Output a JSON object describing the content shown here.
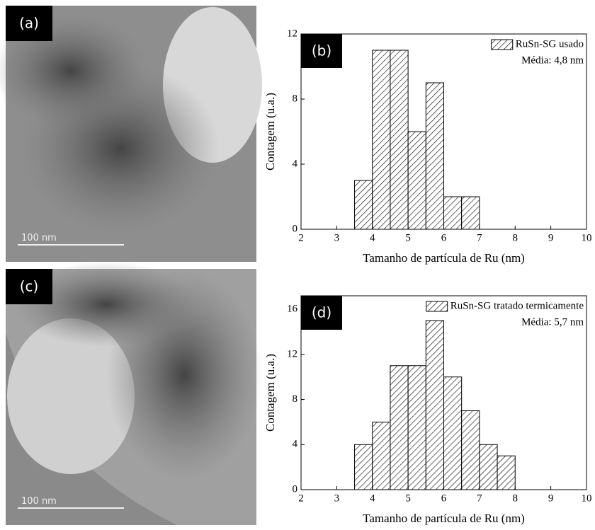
{
  "images": [
    {
      "label": "(a)",
      "scale_bar": "100 nm"
    },
    {
      "label": "(c)",
      "scale_bar": "100 nm"
    }
  ],
  "chart_data": [
    {
      "type": "histogram",
      "label": "(b)",
      "xlabel": "Tamanho de partícula de Ru (nm)",
      "ylabel": "Contagem (u.a.)",
      "bins": [
        3.5,
        4,
        4.5,
        5,
        5.5,
        6,
        6.5,
        7
      ],
      "series": [
        {
          "name": "RuSn-SG usado",
          "values": [
            3,
            11,
            11,
            6,
            9,
            2,
            2
          ]
        }
      ],
      "annotation": "Média: 4,8 nm",
      "xlim": [
        2,
        10
      ],
      "xticks": [
        2,
        3,
        4,
        5,
        6,
        7,
        8,
        9,
        10
      ],
      "ylim": [
        0,
        12
      ],
      "yticks": [
        0,
        4,
        8,
        12
      ]
    },
    {
      "type": "histogram",
      "label": "(d)",
      "xlabel": "Tamanho de partícula de Ru (nm)",
      "ylabel": "Contagem (u.a.)",
      "bins": [
        3.5,
        4,
        4.5,
        5,
        5.5,
        6,
        6.5,
        7,
        7.5,
        8
      ],
      "series": [
        {
          "name": "RuSn-SG tratado termicamente",
          "values": [
            4,
            6,
            11,
            11,
            15,
            10,
            7,
            4,
            3
          ]
        }
      ],
      "annotation": "Média: 5,7 nm",
      "xlim": [
        2,
        10
      ],
      "xticks": [
        2,
        3,
        4,
        5,
        6,
        7,
        8,
        9,
        10
      ],
      "ylim": [
        0,
        17.2
      ],
      "yticks": [
        0,
        4,
        8,
        12,
        16
      ]
    }
  ]
}
